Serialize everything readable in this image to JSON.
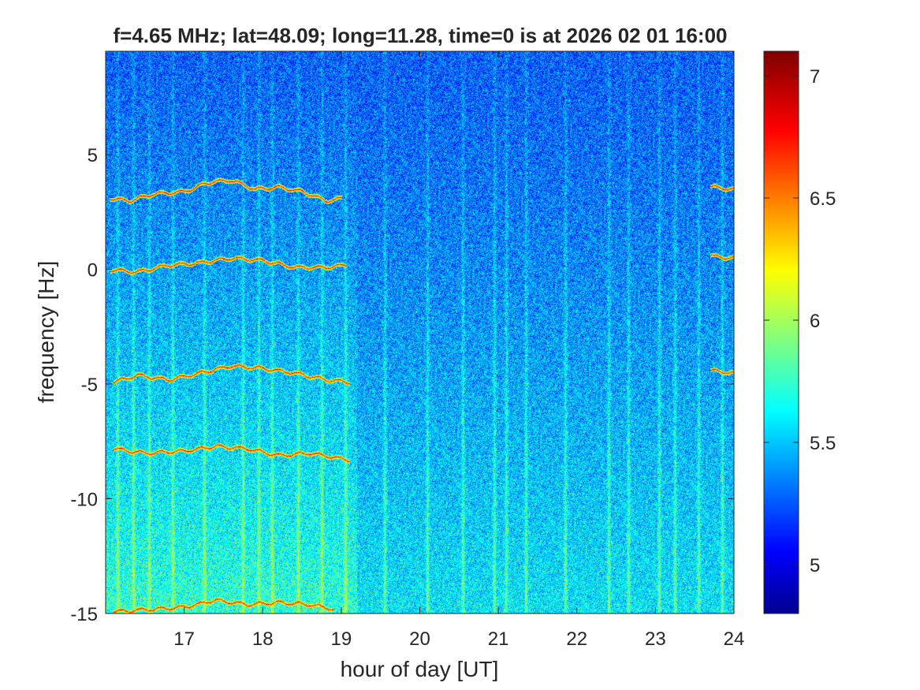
{
  "chart_data": {
    "type": "heatmap",
    "title": "f=4.65 MHz;  lat=48.09; long=11.28, time=0 is at 2026 02 01 16:00",
    "xlabel": "hour of day [UT]",
    "ylabel": "frequency [Hz]",
    "xlim": [
      16.0,
      24.0
    ],
    "ylim": [
      -15,
      9.5
    ],
    "xticks": [
      17,
      18,
      19,
      20,
      21,
      22,
      23,
      24
    ],
    "xtick_labels": [
      "17",
      "18",
      "19",
      "20",
      "21",
      "22",
      "23",
      "24"
    ],
    "yticks": [
      5,
      0,
      -5,
      -10,
      -15
    ],
    "ytick_labels": [
      "5",
      "0",
      "-5",
      "-10",
      "-15"
    ],
    "colorbar": {
      "colormap": "jet",
      "clim": [
        4.8,
        7.1
      ],
      "ticks": [
        7,
        6.5,
        6,
        5.5,
        5
      ],
      "tick_labels": [
        "7",
        "6.5",
        "6",
        "5.5",
        "5"
      ]
    },
    "grid": false,
    "traces": [
      {
        "hours": [
          16.05,
          16.3,
          16.6,
          17.0,
          17.3,
          17.6,
          17.9,
          18.2,
          18.5,
          18.8,
          19.0
        ],
        "freq": [
          3.1,
          3.0,
          3.3,
          3.4,
          3.8,
          3.9,
          3.5,
          3.6,
          3.4,
          3.0,
          3.1
        ]
      },
      {
        "hours": [
          16.05,
          16.4,
          16.8,
          17.2,
          17.6,
          18.0,
          18.4,
          18.8,
          19.05
        ],
        "freq": [
          0.0,
          -0.1,
          0.2,
          0.3,
          0.5,
          0.4,
          0.1,
          0.1,
          0.2
        ]
      },
      {
        "hours": [
          16.1,
          16.4,
          16.8,
          17.2,
          17.6,
          18.0,
          18.4,
          18.8,
          19.1
        ],
        "freq": [
          -4.9,
          -4.6,
          -4.8,
          -4.5,
          -4.2,
          -4.3,
          -4.5,
          -4.8,
          -4.9
        ]
      },
      {
        "hours": [
          16.1,
          16.5,
          17.0,
          17.4,
          17.8,
          18.2,
          18.6,
          19.1
        ],
        "freq": [
          -7.8,
          -8.0,
          -7.9,
          -7.7,
          -7.8,
          -8.1,
          -8.0,
          -8.3
        ]
      },
      {
        "hours": [
          16.1,
          16.6,
          17.0,
          17.4,
          17.8,
          18.2,
          18.6,
          18.9
        ],
        "freq": [
          -14.9,
          -14.8,
          -14.7,
          -14.4,
          -14.6,
          -14.5,
          -14.6,
          -14.8
        ]
      },
      {
        "hours": [
          23.7,
          24.0
        ],
        "freq": [
          3.6,
          3.5
        ]
      },
      {
        "hours": [
          23.7,
          24.0
        ],
        "freq": [
          0.6,
          0.5
        ]
      },
      {
        "hours": [
          23.7,
          24.0
        ],
        "freq": [
          -4.4,
          -4.5
        ]
      }
    ],
    "vertical_streaks_hours": [
      16.15,
      16.35,
      16.55,
      16.85,
      17.25,
      17.75,
      17.95,
      18.12,
      18.45,
      18.75,
      19.05,
      19.55,
      20.1,
      20.55,
      20.95,
      21.1,
      21.35,
      21.85,
      22.4,
      22.65,
      23.05,
      23.25,
      23.55,
      23.85
    ]
  }
}
